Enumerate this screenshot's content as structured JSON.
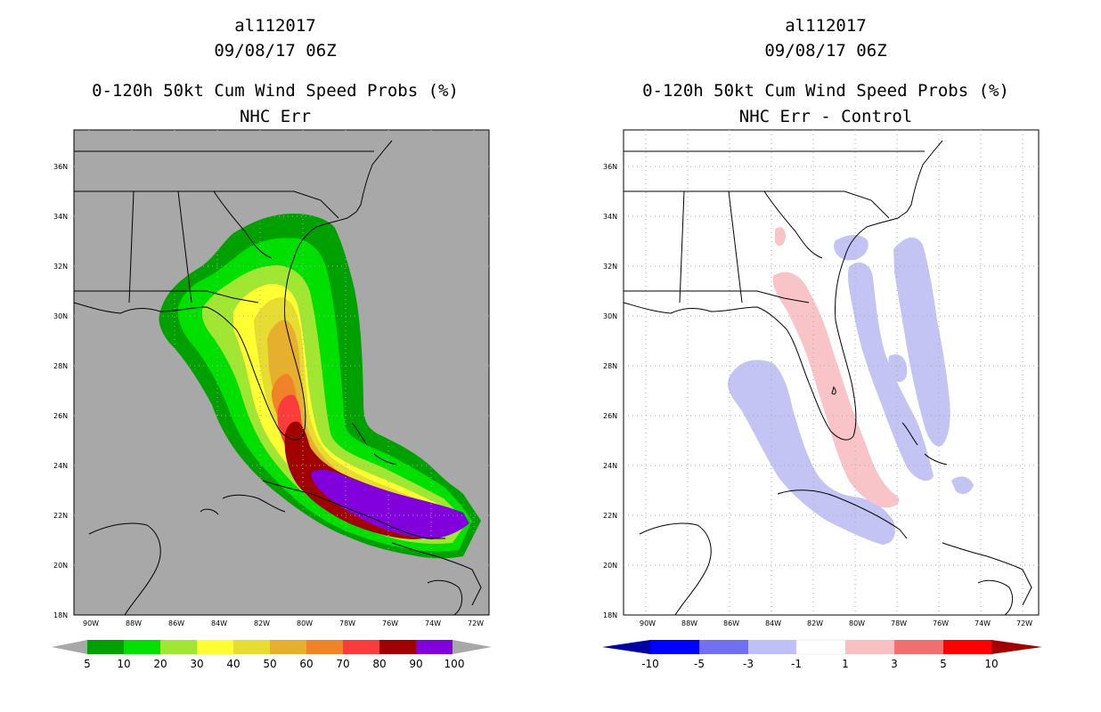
{
  "colors": {
    "land_left": "#a8a8a8",
    "gridline": "#aaaaaa",
    "coast": "#000000",
    "band_colors": [
      "#00a000",
      "#00e000",
      "#a0e632",
      "#ffff33",
      "#e6dc32",
      "#e6af2d",
      "#f08228",
      "#fa3c3c",
      "#a00000",
      "#8200dc"
    ],
    "diff_colors": [
      "#0000a0",
      "#0000ff",
      "#7070f0",
      "#c0c0f8",
      "#ffffff",
      "#f8c0c0",
      "#f07070",
      "#ff0000",
      "#a00000"
    ],
    "diff_neg": "#c4c4f4",
    "diff_pos": "#f8c4c8"
  },
  "left_panel": {
    "storm_id": "al112017",
    "datetime": "09/08/17 06Z",
    "product": "0-120h 50kt Cum Wind Speed Probs (%)",
    "subtitle": "NHC Err",
    "colorbar_labels": [
      "5",
      "10",
      "20",
      "30",
      "40",
      "50",
      "60",
      "70",
      "80",
      "90",
      "100"
    ]
  },
  "right_panel": {
    "storm_id": "al112017",
    "datetime": "09/08/17 06Z",
    "product": "0-120h 50kt Cum Wind Speed Probs (%)",
    "subtitle": "NHC Err - Control",
    "colorbar_labels": [
      "-10",
      "-5",
      "-3",
      "-1",
      "1",
      "3",
      "5",
      "10"
    ]
  },
  "map_axes": {
    "lat_labels": [
      "18N",
      "20N",
      "22N",
      "24N",
      "26N",
      "28N",
      "30N",
      "32N",
      "34N",
      "36N"
    ],
    "lon_labels": [
      "90W",
      "88W",
      "86W",
      "84W",
      "82W",
      "80W",
      "78W",
      "76W",
      "74W",
      "72W"
    ]
  }
}
